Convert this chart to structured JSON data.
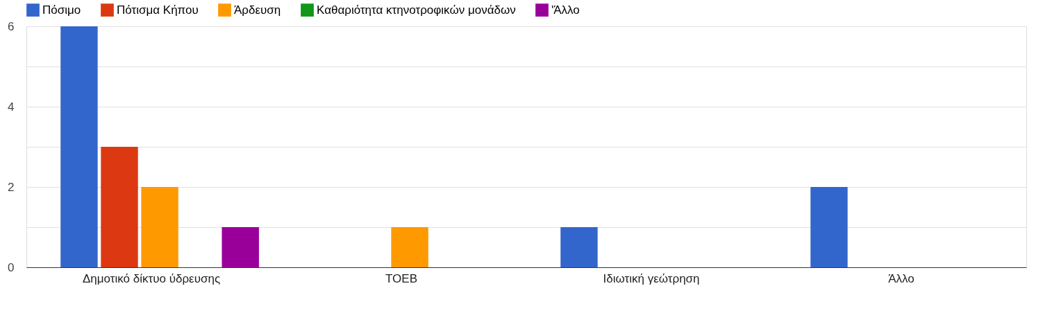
{
  "chart_data": {
    "type": "bar",
    "categories": [
      "Δημοτικό δίκτυο ύδρευσης",
      "ΤΟΕΒ",
      "Ιδιωτική γεώτρηση",
      "Άλλο"
    ],
    "series": [
      {
        "name": "Πόσιμο",
        "color": "#3366cc",
        "values": [
          6,
          0,
          1,
          2
        ]
      },
      {
        "name": "Πότισμα Κήπου",
        "color": "#dc3912",
        "values": [
          3,
          0,
          0,
          0
        ]
      },
      {
        "name": "Άρδευση",
        "color": "#ff9900",
        "values": [
          2,
          1,
          0,
          0
        ]
      },
      {
        "name": "Καθαριότητα κτηνοτροφικών μονάδων",
        "color": "#109618",
        "values": [
          0,
          0,
          0,
          0
        ]
      },
      {
        "name": "'Άλλο",
        "color": "#990099",
        "values": [
          1,
          0,
          0,
          0
        ]
      }
    ],
    "ylim": [
      0,
      6
    ],
    "yticks": [
      0,
      {
        "value": 1,
        "label": null
      },
      2,
      {
        "value": 3,
        "label": null
      },
      4,
      {
        "value": 5,
        "label": null
      },
      6
    ],
    "grid": "y",
    "legend": "top left"
  }
}
